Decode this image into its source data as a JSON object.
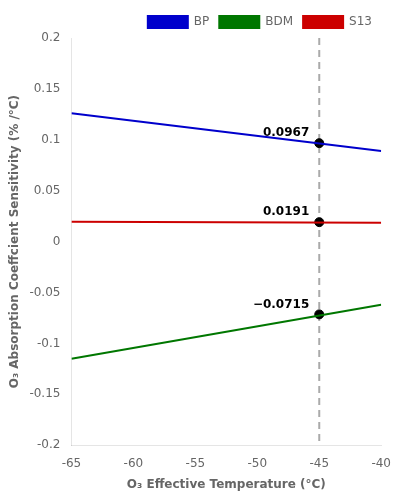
{
  "chart_data": {
    "type": "line",
    "xlabel": "O₃ Effective Temperature (°C)",
    "ylabel": "O₃ Absorption Coeffcient Sensitivity (% /°C)",
    "x": [
      -65,
      -40
    ],
    "series": [
      {
        "name": "BP",
        "color": "#0000cc",
        "values": [
          0.126,
          0.089
        ]
      },
      {
        "name": "BDM",
        "color": "#007700",
        "values": [
          -0.115,
          -0.062
        ]
      },
      {
        "name": "S13",
        "color": "#cc0000",
        "values": [
          0.0196,
          0.0186
        ]
      }
    ],
    "xlim": [
      -65,
      -40
    ],
    "ylim": [
      -0.2,
      0.2
    ],
    "xticks": [
      -65,
      -60,
      -55,
      -50,
      -45,
      -40
    ],
    "yticks": [
      -0.2,
      -0.15,
      -0.1,
      -0.05,
      0,
      0.05,
      0.1,
      0.15,
      0.2
    ],
    "grid": false,
    "legend": "upper right",
    "reference_lines": [
      {
        "x": -45,
        "color": "#aaaaaa",
        "line_style": "dashed"
      }
    ],
    "annotations": [
      {
        "text": "0.0967",
        "x": -45,
        "y": 0.0967,
        "marker": "circle",
        "color": "#000000"
      },
      {
        "text": "0.0191",
        "x": -45,
        "y": 0.0191,
        "marker": "circle",
        "color": "#000000"
      },
      {
        "text": "−0.0715",
        "x": -45,
        "y": -0.0715,
        "marker": "circle",
        "color": "#000000"
      }
    ]
  }
}
